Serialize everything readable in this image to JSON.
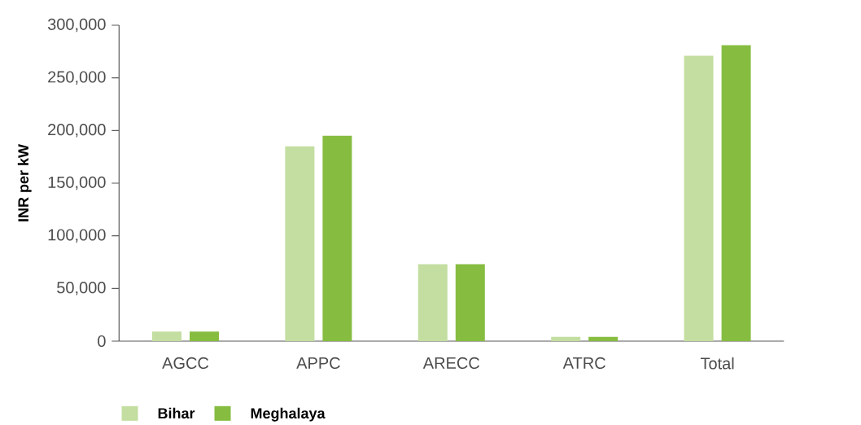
{
  "chart_data": {
    "type": "bar",
    "ylabel": "INR per kW",
    "categories": [
      "AGCC",
      "APPC",
      "ARECC",
      "ATRC",
      "Total"
    ],
    "series": [
      {
        "name": "Bihar",
        "color": "#c3dea0",
        "values": [
          9000,
          185000,
          73000,
          4000,
          271000
        ]
      },
      {
        "name": "Meghalaya",
        "color": "#86bd41",
        "values": [
          9000,
          195000,
          73000,
          4000,
          281000
        ]
      }
    ],
    "ylim": [
      0,
      300000
    ],
    "yticks": [
      {
        "value": 0,
        "label": "0"
      },
      {
        "value": 50000,
        "label": "50,000"
      },
      {
        "value": 100000,
        "label": "100,000"
      },
      {
        "value": 150000,
        "label": "150,000"
      },
      {
        "value": 200000,
        "label": "200,000"
      },
      {
        "value": 250000,
        "label": "250,000"
      },
      {
        "value": 300000,
        "label": "300,000"
      }
    ],
    "legend": "bottom left",
    "grid": false
  }
}
